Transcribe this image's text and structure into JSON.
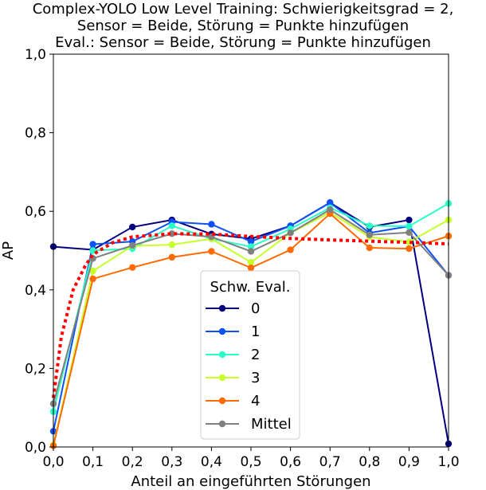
{
  "chart_data": {
    "type": "line",
    "title_lines": [
      "Complex-YOLO Low Level Training: Schwierigkeitsgrad = 2,",
      "Sensor = Beide, Störung = Punkte hinzufügen",
      "Eval.: Sensor = Beide, Störung = Punkte hinzufügen"
    ],
    "xlabel": "Anteil an eingeführten Störungen",
    "ylabel": "AP",
    "xlim": [
      0,
      1
    ],
    "ylim": [
      0,
      1
    ],
    "x": [
      0.0,
      0.1,
      0.2,
      0.3,
      0.4,
      0.5,
      0.6,
      0.7,
      0.8,
      0.9,
      1.0
    ],
    "x_tick_labels": [
      "0,0",
      "0,1",
      "0,2",
      "0,3",
      "0,4",
      "0,5",
      "0,6",
      "0,7",
      "0,8",
      "0,9",
      "1,0"
    ],
    "y_ticks": [
      0.0,
      0.2,
      0.4,
      0.6,
      0.8,
      1.0
    ],
    "y_tick_labels": [
      "0,0",
      "0,2",
      "0,4",
      "0,6",
      "0,8",
      "1,0"
    ],
    "grid": false,
    "legend": {
      "title": "Schw. Eval.",
      "placement": "lower-center"
    },
    "series": [
      {
        "name": "0",
        "color": "#00007f",
        "values": [
          0.51,
          0.502,
          0.56,
          0.578,
          0.542,
          0.53,
          0.563,
          0.622,
          0.56,
          0.578,
          0.008
        ]
      },
      {
        "name": "1",
        "color": "#0d52f7",
        "values": [
          0.04,
          0.516,
          0.523,
          0.573,
          0.567,
          0.523,
          0.563,
          0.622,
          0.545,
          0.562,
          0.437
        ]
      },
      {
        "name": "2",
        "color": "#29ffc6",
        "values": [
          0.09,
          0.5,
          0.505,
          0.563,
          0.53,
          0.51,
          0.555,
          0.609,
          0.563,
          0.562,
          0.62
        ]
      },
      {
        "name": "3",
        "color": "#c6ff29",
        "values": [
          0.005,
          0.448,
          0.512,
          0.515,
          0.53,
          0.47,
          0.545,
          0.597,
          0.535,
          0.522,
          0.578
        ]
      },
      {
        "name": "4",
        "color": "#ff6b00",
        "values": [
          0.003,
          0.428,
          0.457,
          0.483,
          0.498,
          0.456,
          0.502,
          0.594,
          0.507,
          0.505,
          0.537
        ]
      },
      {
        "name": "Mittel",
        "color": "#808080",
        "values": [
          0.11,
          0.48,
          0.513,
          0.543,
          0.535,
          0.498,
          0.545,
          0.604,
          0.54,
          0.546,
          0.437
        ]
      }
    ],
    "trend_line": {
      "color": "#ff0000",
      "style": "dotted",
      "x": [
        0.0,
        0.02,
        0.05,
        0.08,
        0.1,
        0.15,
        0.2,
        0.3,
        0.4,
        0.5,
        0.6,
        0.7,
        0.8,
        0.9,
        1.0
      ],
      "values": [
        0.125,
        0.28,
        0.4,
        0.46,
        0.49,
        0.52,
        0.535,
        0.543,
        0.542,
        0.536,
        0.531,
        0.527,
        0.524,
        0.521,
        0.517
      ]
    }
  }
}
